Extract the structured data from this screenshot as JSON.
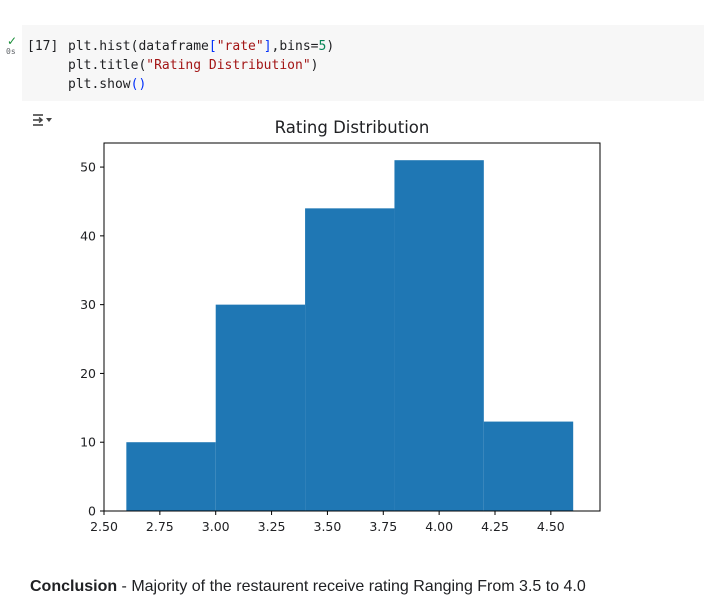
{
  "cell": {
    "status": "check-icon",
    "exec_time": "0s",
    "exec_count": "[17]",
    "code_lines": [
      [
        {
          "t": "plt.hist(dataframe",
          "c": ""
        },
        {
          "t": "[",
          "c": "punct"
        },
        {
          "t": "\"rate\"",
          "c": "str"
        },
        {
          "t": "]",
          "c": "punct"
        },
        {
          "t": ",bins=",
          "c": ""
        },
        {
          "t": "5",
          "c": "num"
        },
        {
          "t": ")",
          "c": ""
        }
      ],
      [
        {
          "t": "plt.title(",
          "c": ""
        },
        {
          "t": "\"Rating Distribution\"",
          "c": "str"
        },
        {
          "t": ")",
          "c": ""
        }
      ],
      [
        {
          "t": "plt.show",
          "c": ""
        },
        {
          "t": "()",
          "c": "punct"
        }
      ]
    ]
  },
  "output": {
    "toggle_icon": "output-collapse-icon"
  },
  "chart_data": {
    "type": "bar",
    "title": "Rating Distribution",
    "xlabel": "",
    "ylabel": "",
    "bins": [
      {
        "start": 2.6,
        "end": 3.0,
        "count": 10
      },
      {
        "start": 3.0,
        "end": 3.4,
        "count": 30
      },
      {
        "start": 3.4,
        "end": 3.8,
        "count": 44
      },
      {
        "start": 3.8,
        "end": 4.2,
        "count": 51
      },
      {
        "start": 4.2,
        "end": 4.6,
        "count": 13
      }
    ],
    "xlim": [
      2.5,
      4.72
    ],
    "ylim": [
      0,
      53.5
    ],
    "xticks": [
      "2.50",
      "2.75",
      "3.00",
      "3.25",
      "3.50",
      "3.75",
      "4.00",
      "4.25",
      "4.50"
    ],
    "xtick_values": [
      2.5,
      2.75,
      3.0,
      3.25,
      3.5,
      3.75,
      4.0,
      4.25,
      4.5
    ],
    "yticks": [
      "0",
      "10",
      "20",
      "30",
      "40",
      "50"
    ],
    "ytick_values": [
      0,
      10,
      20,
      30,
      40,
      50
    ],
    "bar_color": "#1f77b4",
    "grid": false,
    "legend": "none"
  },
  "conclusion": {
    "label": "Conclusion",
    "text": " - Majority of the restaurent receive rating Ranging From 3.5 to 4.0"
  }
}
